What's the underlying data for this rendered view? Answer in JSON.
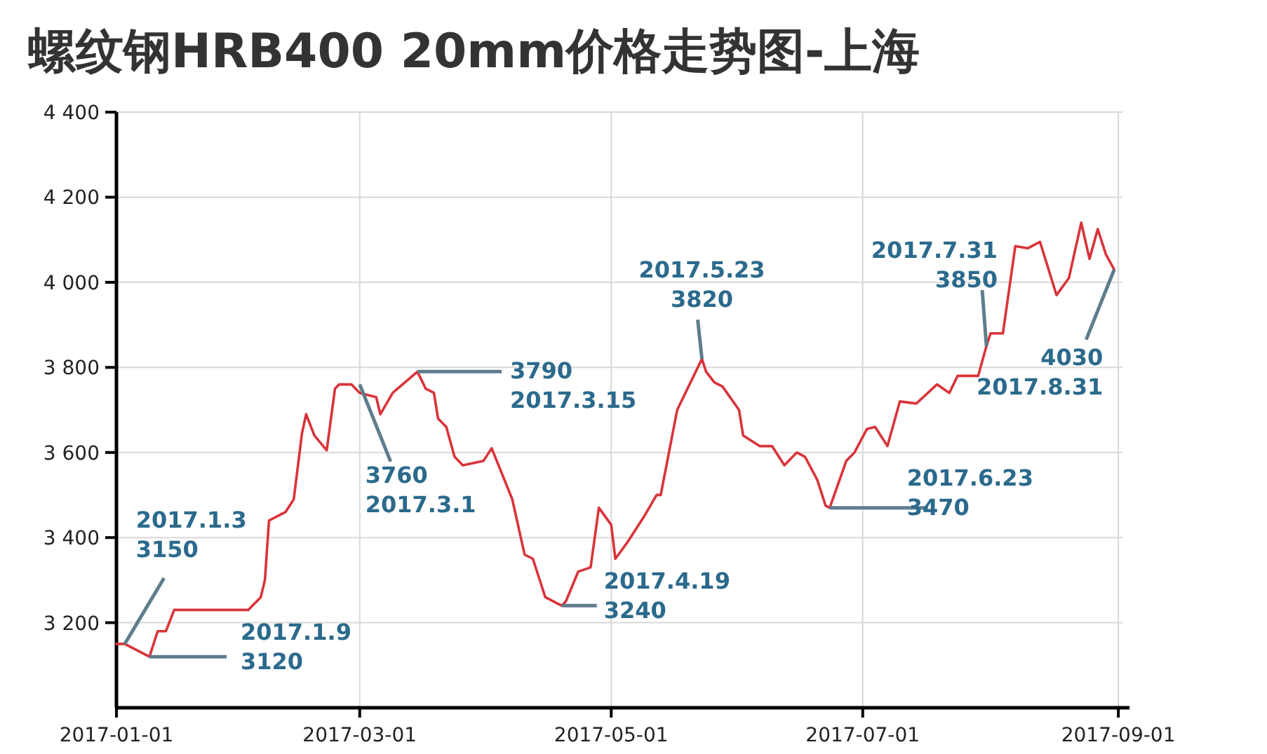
{
  "chart_data": {
    "type": "line",
    "title": "螺纹钢HRB400 20mm价格走势图-上海",
    "x": [
      "2017-01-01",
      "2017-01-03",
      "2017-01-09",
      "2017-01-11",
      "2017-01-13",
      "2017-01-15",
      "2017-02-02",
      "2017-02-05",
      "2017-02-06",
      "2017-02-07",
      "2017-02-11",
      "2017-02-13",
      "2017-02-15",
      "2017-02-16",
      "2017-02-18",
      "2017-02-21",
      "2017-02-23",
      "2017-02-24",
      "2017-02-27",
      "2017-03-01",
      "2017-03-05",
      "2017-03-06",
      "2017-03-09",
      "2017-03-15",
      "2017-03-17",
      "2017-03-19",
      "2017-03-20",
      "2017-03-22",
      "2017-03-24",
      "2017-03-26",
      "2017-03-31",
      "2017-04-02",
      "2017-04-07",
      "2017-04-10",
      "2017-04-12",
      "2017-04-15",
      "2017-04-19",
      "2017-04-20",
      "2017-04-23",
      "2017-04-26",
      "2017-04-28",
      "2017-05-01",
      "2017-05-02",
      "2017-05-05",
      "2017-05-09",
      "2017-05-12",
      "2017-05-13",
      "2017-05-17",
      "2017-05-23",
      "2017-05-24",
      "2017-05-26",
      "2017-05-28",
      "2017-06-01",
      "2017-06-02",
      "2017-06-06",
      "2017-06-09",
      "2017-06-12",
      "2017-06-15",
      "2017-06-17",
      "2017-06-20",
      "2017-06-22",
      "2017-06-23",
      "2017-06-27",
      "2017-06-29",
      "2017-07-02",
      "2017-07-04",
      "2017-07-07",
      "2017-07-10",
      "2017-07-14",
      "2017-07-19",
      "2017-07-22",
      "2017-07-24",
      "2017-07-29",
      "2017-07-31",
      "2017-08-01",
      "2017-08-04",
      "2017-08-07",
      "2017-08-10",
      "2017-08-13",
      "2017-08-17",
      "2017-08-20",
      "2017-08-23",
      "2017-08-25",
      "2017-08-27",
      "2017-08-29",
      "2017-08-31"
    ],
    "series": [
      {
        "color": "#d9343a",
        "values": [
          3150,
          3150,
          3120,
          3180,
          3180,
          3230,
          3230,
          3260,
          3300,
          3440,
          3460,
          3490,
          3645,
          3690,
          3640,
          3605,
          3750,
          3760,
          3760,
          3740,
          3730,
          3690,
          3740,
          3790,
          3750,
          3740,
          3680,
          3660,
          3590,
          3570,
          3580,
          3610,
          3490,
          3360,
          3350,
          3260,
          3240,
          3250,
          3320,
          3330,
          3470,
          3430,
          3350,
          3390,
          3450,
          3500,
          3500,
          3700,
          3820,
          3790,
          3765,
          3755,
          3700,
          3640,
          3615,
          3615,
          3570,
          3600,
          3590,
          3535,
          3475,
          3470,
          3580,
          3600,
          3655,
          3660,
          3615,
          3720,
          3715,
          3760,
          3740,
          3780,
          3780,
          3850,
          3880,
          3880,
          4085,
          4080,
          4095,
          3970,
          4010,
          4140,
          4055,
          4125,
          4065,
          4030
        ]
      }
    ],
    "xlim": [
      "2017-01-01",
      "2017-09-02"
    ],
    "xticks": [
      {
        "value": "2017-01-01",
        "label": "2017-01-01"
      },
      {
        "value": "2017-03-01",
        "label": "2017-03-01"
      },
      {
        "value": "2017-05-01",
        "label": "2017-05-01"
      },
      {
        "value": "2017-07-01",
        "label": "2017-07-01"
      },
      {
        "value": "2017-09-01",
        "label": "2017-09-01"
      }
    ],
    "ylim": [
      3000,
      4400
    ],
    "yticks": [
      {
        "value": 3200,
        "label": "3 200"
      },
      {
        "value": 3400,
        "label": "3 400"
      },
      {
        "value": 3600,
        "label": "3 600"
      },
      {
        "value": 3800,
        "label": "3 800"
      },
      {
        "value": 4000,
        "label": "4 000"
      },
      {
        "value": 4200,
        "label": "4 200"
      },
      {
        "value": 4400,
        "label": "4 400"
      }
    ],
    "grid": true,
    "marker": "none",
    "line_style": "solid",
    "annotations": [
      {
        "text": "2017.1.3\n3150",
        "x": "2017-01-03",
        "y": 3150
      },
      {
        "text": "2017.1.9\n3120",
        "x": "2017-01-09",
        "y": 3120
      },
      {
        "text": "3760\n2017.3.1",
        "x": "2017-03-01",
        "y": 3760
      },
      {
        "text": "3790\n2017.3.15",
        "x": "2017-03-15",
        "y": 3790
      },
      {
        "text": "2017.4.19\n3240",
        "x": "2017-04-19",
        "y": 3240
      },
      {
        "text": "2017.5.23\n3820",
        "x": "2017-05-23",
        "y": 3820
      },
      {
        "text": "2017.6.23\n3470",
        "x": "2017-06-23",
        "y": 3470
      },
      {
        "text": "2017.7.31\n3850",
        "x": "2017-07-31",
        "y": 3850
      },
      {
        "text": "4030\n2017.8.31",
        "x": "2017-08-31",
        "y": 4030
      }
    ]
  }
}
